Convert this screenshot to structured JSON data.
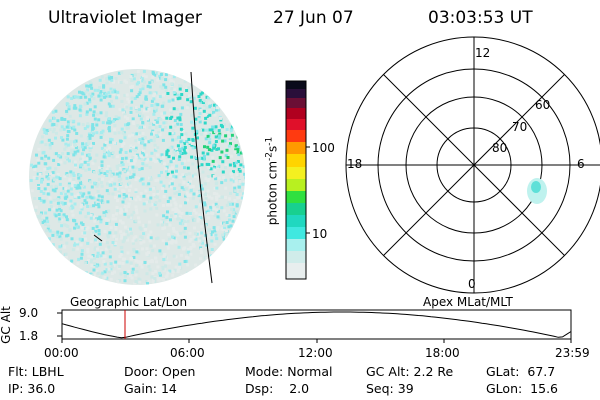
{
  "header": {
    "title": "Ultraviolet Imager",
    "date": "27 Jun 07",
    "time": "03:03:53 UT"
  },
  "colorbar": {
    "label": "photon cm",
    "label_exp1": "-2",
    "label_s": "s",
    "label_exp2": "-1",
    "ticks": [
      "100",
      "10"
    ]
  },
  "polar_plot": {
    "mlt_labels": [
      "12",
      "18",
      "6",
      "0"
    ],
    "mlat_labels": [
      "60",
      "70",
      "80"
    ]
  },
  "orbit_plot": {
    "left_title": "Geographic Lat/Lon",
    "right_title": "Apex MLat/MLT",
    "y_label": "GC Alt",
    "y_ticks": [
      "9.0",
      "1.8"
    ],
    "x_ticks": [
      "00:00",
      "06:00",
      "12:00",
      "18:00",
      "23:59"
    ]
  },
  "footer": [
    {
      "label": "Flt:",
      "value": "LBHL"
    },
    {
      "label": "Door:",
      "value": "Open"
    },
    {
      "label": "Mode:",
      "value": "Normal"
    },
    {
      "label": "GC Alt:",
      "value": "2.2 Re"
    },
    {
      "label": "GLat:",
      "value": "67.7"
    },
    {
      "label": "IP:",
      "value": "36.0"
    },
    {
      "label": "Gain:",
      "value": "14"
    },
    {
      "label": "Dsp:",
      "value": "2.0"
    },
    {
      "label": "Seq:",
      "value": "39"
    },
    {
      "label": "GLon:",
      "value": "15.6"
    }
  ]
}
